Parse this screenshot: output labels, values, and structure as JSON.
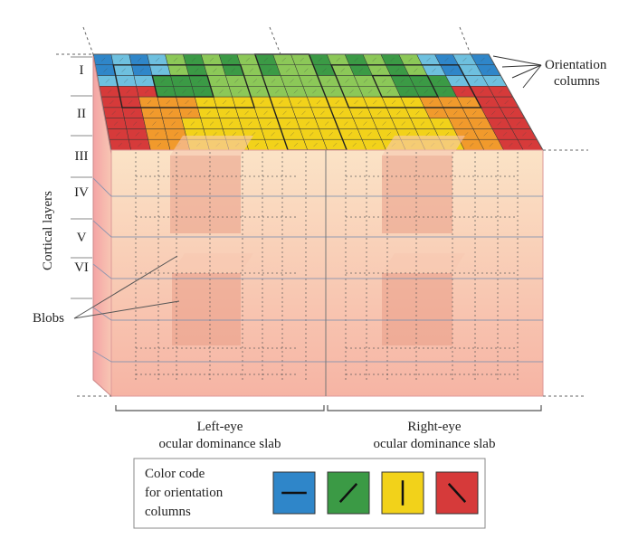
{
  "axis_label": "Cortical layers",
  "layers": [
    "I",
    "II",
    "III",
    "IV",
    "V",
    "VI"
  ],
  "orientation_label": [
    "Orientation",
    "columns"
  ],
  "blobs_label": "Blobs",
  "slabs": [
    {
      "line1": "Left-eye",
      "line2": "ocular dominance slab"
    },
    {
      "line1": "Right-eye",
      "line2": "ocular dominance slab"
    }
  ],
  "legend": {
    "lines": [
      "Color code",
      "for orientation",
      "columns"
    ],
    "swatches": [
      {
        "color": "#2f86c9",
        "icon": "horizontal-bar-icon"
      },
      {
        "color": "#3b9a45",
        "icon": "oblique-right-bar-icon"
      },
      {
        "color": "#f2d21a",
        "icon": "vertical-bar-icon"
      },
      {
        "color": "#d63a3a",
        "icon": "oblique-left-bar-icon"
      }
    ]
  },
  "colors": {
    "blue": "#2f86c9",
    "light_blue": "#6ec0df",
    "green": "#3b9a45",
    "light_green": "#8cc858",
    "yellow": "#f2d21a",
    "orange": "#f19a2c",
    "red": "#d63a3a",
    "front_face_top": "#fbe0c0",
    "front_face_bottom": "#f6b0a2",
    "blob": "#ea9c86"
  }
}
